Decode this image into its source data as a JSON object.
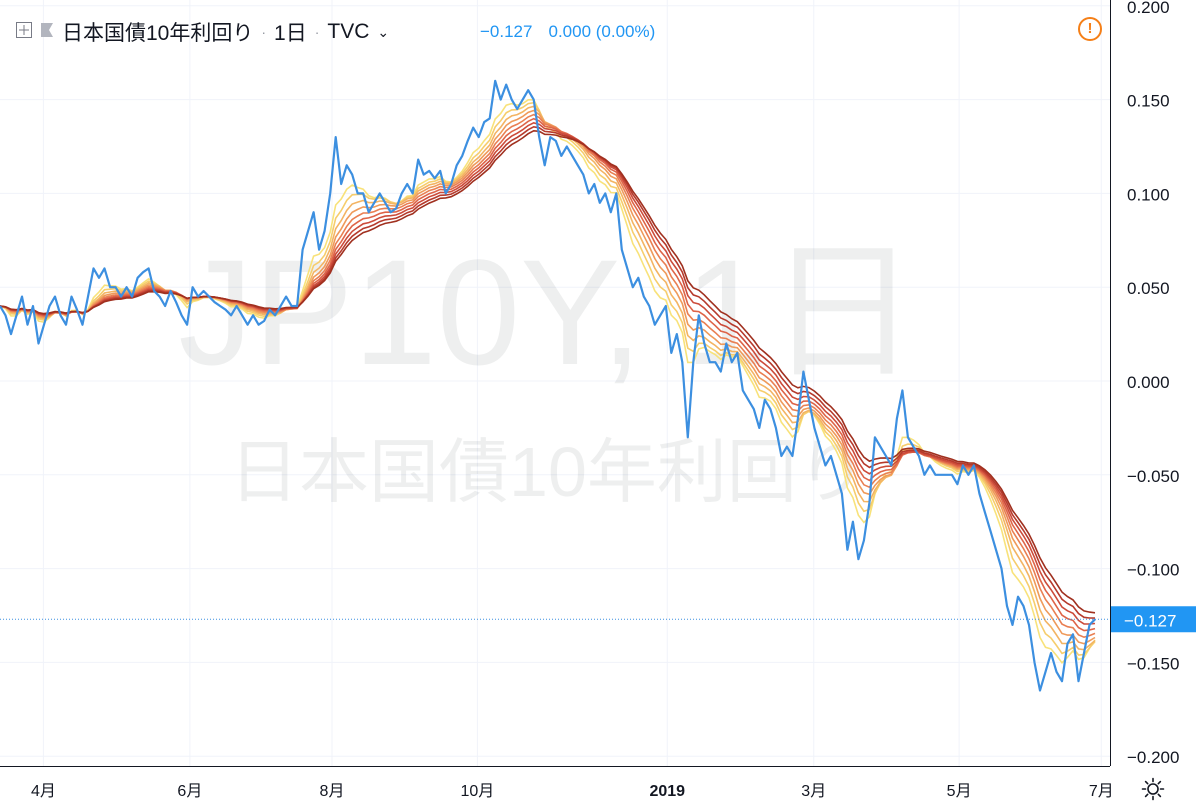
{
  "header": {
    "symbol_name": "日本国債10年利回り",
    "interval": "1日",
    "exchange": "TVC",
    "last": "−0.127",
    "change": "0.000",
    "change_pct": "(0.00%)"
  },
  "watermark": {
    "line1": "JP10Y, 1日",
    "line2": "日本国債10年利回り"
  },
  "colors": {
    "price_line": "#3c8fe0",
    "warning": "#f57f17",
    "ribbon": [
      "#f8e27a",
      "#f6cd6c",
      "#f3b463",
      "#ef9a5a",
      "#e97f52",
      "#de6448",
      "#cc4b3a",
      "#b63a2c",
      "#a0301f"
    ]
  },
  "chart_data": {
    "type": "line",
    "title": "日本国債10年利回り",
    "y_axis_ticks": [
      "0.200",
      "0.150",
      "0.100",
      "0.050",
      "0.000",
      "−0.050",
      "−0.100",
      "−0.150",
      "−0.200"
    ],
    "y_tick_values": [
      0.2,
      0.15,
      0.1,
      0.05,
      0.0,
      -0.05,
      -0.1,
      -0.15,
      -0.2
    ],
    "ylim": [
      -0.205,
      0.2
    ],
    "x_axis_ticks": [
      {
        "label": "4月",
        "t": 0.04
      },
      {
        "label": "6月",
        "t": 0.175
      },
      {
        "label": "8月",
        "t": 0.306
      },
      {
        "label": "10月",
        "t": 0.44
      },
      {
        "label": "2019",
        "t": 0.615
      },
      {
        "label": "3月",
        "t": 0.75
      },
      {
        "label": "5月",
        "t": 0.884
      },
      {
        "label": "7月",
        "t": 1.015
      }
    ],
    "last_value": -0.127,
    "last_value_label": "−0.127",
    "grid": true,
    "series": [
      {
        "values": [
          0.04,
          0.035,
          0.025,
          0.035,
          0.045,
          0.03,
          0.04,
          0.02,
          0.03,
          0.04,
          0.045,
          0.035,
          0.03,
          0.045,
          0.038,
          0.03,
          0.045,
          0.06,
          0.055,
          0.06,
          0.05,
          0.05,
          0.045,
          0.05,
          0.045,
          0.055,
          0.058,
          0.06,
          0.048,
          0.045,
          0.04,
          0.048,
          0.042,
          0.035,
          0.03,
          0.05,
          0.045,
          0.048,
          0.045,
          0.042,
          0.04,
          0.038,
          0.035,
          0.04,
          0.035,
          0.03,
          0.035,
          0.03,
          0.032,
          0.038,
          0.035,
          0.04,
          0.045,
          0.04,
          0.04,
          0.07,
          0.08,
          0.09,
          0.07,
          0.08,
          0.1,
          0.13,
          0.105,
          0.115,
          0.11,
          0.1,
          0.1,
          0.09,
          0.095,
          0.1,
          0.095,
          0.09,
          0.092,
          0.1,
          0.105,
          0.1,
          0.118,
          0.11,
          0.112,
          0.108,
          0.112,
          0.1,
          0.105,
          0.115,
          0.12,
          0.128,
          0.135,
          0.13,
          0.138,
          0.14,
          0.16,
          0.15,
          0.158,
          0.15,
          0.145,
          0.15,
          0.155,
          0.15,
          0.13,
          0.115,
          0.13,
          0.128,
          0.12,
          0.125,
          0.12,
          0.115,
          0.11,
          0.1,
          0.105,
          0.095,
          0.1,
          0.09,
          0.1,
          0.07,
          0.06,
          0.05,
          0.055,
          0.045,
          0.04,
          0.03,
          0.035,
          0.04,
          0.015,
          0.025,
          0.01,
          -0.03,
          0.01,
          0.035,
          0.02,
          0.01,
          0.01,
          0.005,
          0.02,
          0.01,
          0.015,
          -0.005,
          -0.01,
          -0.015,
          -0.025,
          -0.01,
          -0.015,
          -0.025,
          -0.04,
          -0.035,
          -0.04,
          -0.02,
          0.005,
          -0.01,
          -0.025,
          -0.035,
          -0.045,
          -0.04,
          -0.05,
          -0.06,
          -0.09,
          -0.075,
          -0.095,
          -0.085,
          -0.065,
          -0.03,
          -0.035,
          -0.04,
          -0.045,
          -0.02,
          -0.005,
          -0.03,
          -0.035,
          -0.04,
          -0.05,
          -0.045,
          -0.05,
          -0.05,
          -0.05,
          -0.05,
          -0.055,
          -0.045,
          -0.05,
          -0.045,
          -0.06,
          -0.07,
          -0.08,
          -0.09,
          -0.1,
          -0.12,
          -0.13,
          -0.115,
          -0.12,
          -0.13,
          -0.15,
          -0.165,
          -0.155,
          -0.145,
          -0.155,
          -0.16,
          -0.14,
          -0.135,
          -0.16,
          -0.145,
          -0.13,
          -0.127
        ]
      }
    ]
  }
}
